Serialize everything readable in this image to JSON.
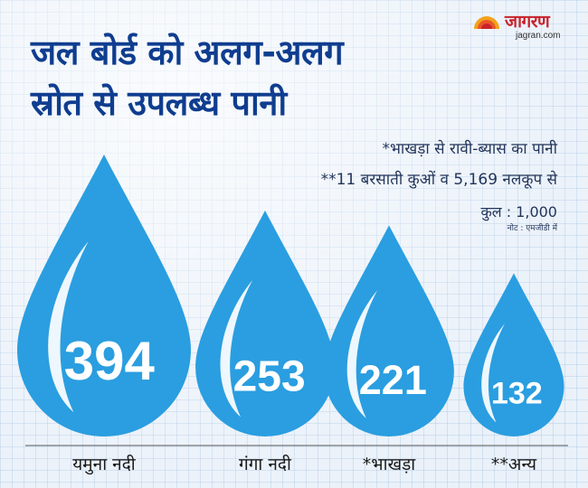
{
  "logo": {
    "name": "जागरण",
    "site": "jagran.com"
  },
  "title_lines": [
    "जल बोर्ड को अलग-अलग",
    "स्रोत से उपलब्ध पानी"
  ],
  "notes": {
    "line1": "*भाखड़ा से रावी-ब्यास का पानी",
    "line2": "**11 बरसाती कुओं व 5,169 नलकूप से",
    "total": "कुल : 1,000",
    "unit": "नोट : एमजीडी में"
  },
  "colors": {
    "drop": "#2a9ee0",
    "drop_dark": "#1c7fc2",
    "title": "#0f3d8f",
    "logo": "#c8232c"
  },
  "chart_data": {
    "type": "bar",
    "categories": [
      "यमुना नदी",
      "गंगा नदी",
      "*भाखड़ा",
      "**अन्य"
    ],
    "values": [
      394,
      253,
      221,
      132
    ],
    "value_labels": [
      "394",
      "253",
      "221",
      "132"
    ],
    "total": 1000,
    "unit": "एमजीडी",
    "title": "जल बोर्ड को अलग-अलग स्रोत से उपलब्ध पानी",
    "grid": true,
    "legend": "none"
  }
}
